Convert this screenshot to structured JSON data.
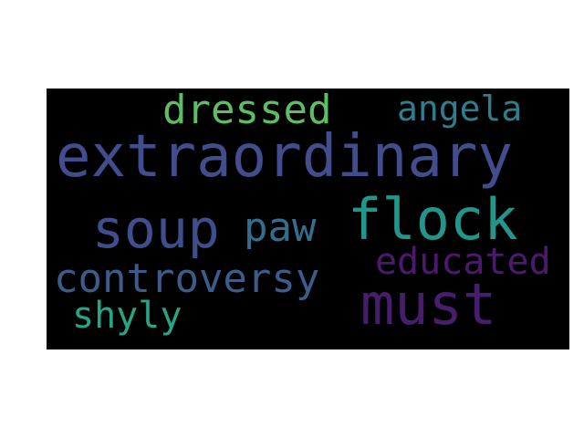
{
  "wordcloud": {
    "words": [
      {
        "text": "dressed",
        "color": "#5cbf63"
      },
      {
        "text": "angela",
        "color": "#2f7e90"
      },
      {
        "text": "extraordinary",
        "color": "#414d8c"
      },
      {
        "text": "soup",
        "color": "#3f4f8e"
      },
      {
        "text": "paw",
        "color": "#346e8f"
      },
      {
        "text": "flock",
        "color": "#22968b"
      },
      {
        "text": "educated",
        "color": "#4b1a6c"
      },
      {
        "text": "controversy",
        "color": "#3c5c8c"
      },
      {
        "text": "must",
        "color": "#461e6b"
      },
      {
        "text": "shyly",
        "color": "#26a686"
      }
    ]
  }
}
